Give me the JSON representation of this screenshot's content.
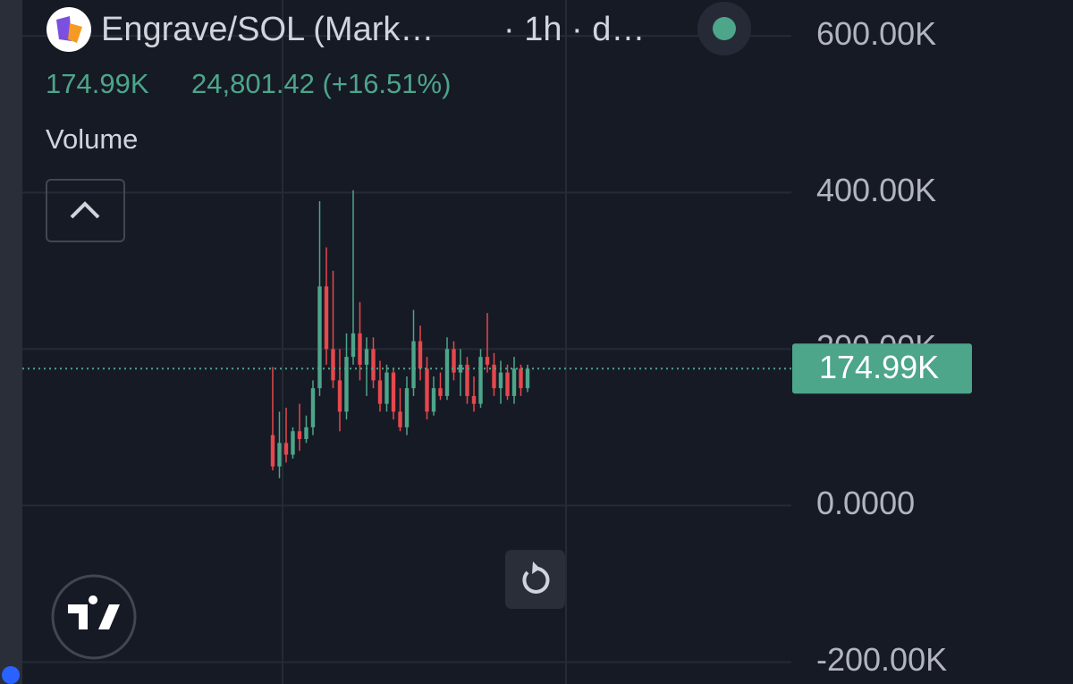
{
  "chart_data": {
    "type": "candlestick",
    "title": "Engrave/SOL (Mark…",
    "subtitle": "· 1h · d…",
    "legend_price": "174.99K",
    "legend_change": "24,801.42 (+16.51%)",
    "indicator": "Volume",
    "last_price": {
      "value": 174990,
      "label": "174.99K"
    },
    "up_color": "#4da58a",
    "down_color": "#e5484d",
    "ylim": [
      -228000,
      646000
    ],
    "yticks": [
      {
        "value": -200000,
        "label": "-200.00K"
      },
      {
        "value": 0,
        "label": "0.0000"
      },
      {
        "value": 200000,
        "label": "200.00K"
      },
      {
        "value": 400000,
        "label": "400.00K"
      },
      {
        "value": 600000,
        "label": "600.00K"
      }
    ],
    "grid": true,
    "open": [
      90000,
      50000,
      80000,
      65000,
      95000,
      85000,
      100000,
      150000,
      280000,
      200000,
      160000,
      120000,
      190000,
      220000,
      180000,
      200000,
      160000,
      130000,
      170000,
      120000,
      100000,
      150000,
      210000,
      175000,
      120000,
      150000,
      140000,
      200000,
      170000,
      180000,
      140000,
      130000,
      190000,
      180000,
      150000,
      170000,
      140000,
      175000,
      150000
    ],
    "high": [
      177000,
      120000,
      125000,
      100000,
      130000,
      115000,
      160000,
      389000,
      330000,
      300000,
      200000,
      220000,
      403000,
      260000,
      215000,
      215000,
      185000,
      180000,
      175000,
      150000,
      165000,
      250000,
      230000,
      190000,
      165000,
      170000,
      215000,
      210000,
      200000,
      190000,
      165000,
      200000,
      246000,
      195000,
      185000,
      180000,
      190000,
      180000,
      180000
    ],
    "low": [
      45000,
      35000,
      55000,
      60000,
      70000,
      80000,
      90000,
      140000,
      180000,
      150000,
      95000,
      110000,
      180000,
      160000,
      140000,
      150000,
      120000,
      120000,
      110000,
      95000,
      90000,
      140000,
      160000,
      110000,
      115000,
      135000,
      135000,
      160000,
      140000,
      130000,
      120000,
      125000,
      170000,
      140000,
      130000,
      135000,
      130000,
      140000,
      145000
    ],
    "close": [
      50000,
      80000,
      65000,
      95000,
      85000,
      100000,
      150000,
      280000,
      200000,
      160000,
      120000,
      190000,
      220000,
      180000,
      200000,
      160000,
      130000,
      170000,
      120000,
      100000,
      150000,
      210000,
      175000,
      120000,
      150000,
      140000,
      200000,
      170000,
      180000,
      140000,
      130000,
      190000,
      180000,
      150000,
      170000,
      140000,
      175000,
      150000,
      175000
    ]
  }
}
